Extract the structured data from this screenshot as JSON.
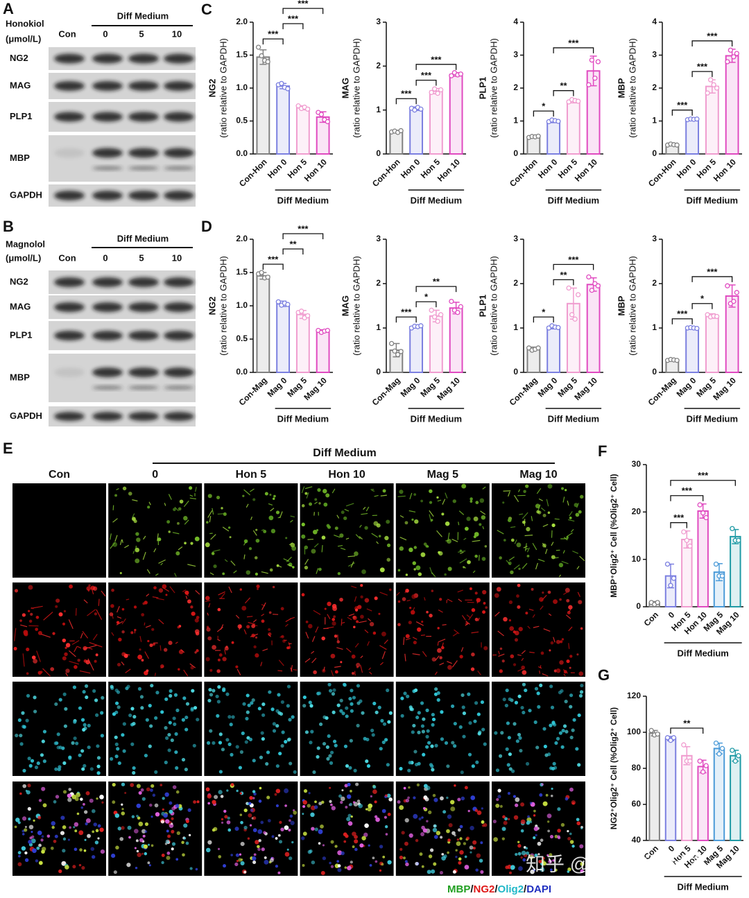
{
  "blots": [
    {
      "letter": "A",
      "treatment": "Honokiol",
      "unit": "(μmol/L)",
      "group": "Diff Medium",
      "lanes": [
        "Con",
        "0",
        "5",
        "10"
      ],
      "rows": [
        "NG2",
        "MAG",
        "PLP1",
        "MBP",
        "GAPDH"
      ]
    },
    {
      "letter": "B",
      "treatment": "Magnolol",
      "unit": "(μmol/L)",
      "group": "Diff Medium",
      "lanes": [
        "Con",
        "0",
        "5",
        "10"
      ],
      "rows": [
        "NG2",
        "MAG",
        "PLP1",
        "MBP",
        "GAPDH"
      ]
    }
  ],
  "micrographs": {
    "letter": "E",
    "group": "Diff Medium",
    "columns": [
      "Con",
      "0",
      "Hon 5",
      "Hon 10",
      "Mag 5",
      "Mag 10"
    ],
    "legend": {
      "separator": "/",
      "channels": [
        {
          "name": "MBP",
          "color": "#22a022"
        },
        {
          "name": "NG2",
          "color": "#e01818"
        },
        {
          "name": "Olig2",
          "color": "#20b8c8"
        },
        {
          "name": "DAPI",
          "color": "#2030c0"
        }
      ]
    }
  },
  "watermark": "知乎 @逻辑神经科学",
  "chart_data": [
    {
      "type": "bar",
      "panel": "C",
      "ylabel": "NG2",
      "ylabel_sub": "(ratio relative to GAPDH)",
      "group": "Diff Medium",
      "categories": [
        "Con-Hon",
        "Hon 0",
        "Hon 5",
        "Hon 10"
      ],
      "colors": [
        "#808080",
        "#7b7fe0",
        "#f09ccf",
        "#e04ac0"
      ],
      "values": [
        1.47,
        1.03,
        0.7,
        0.56
      ],
      "errors": [
        0.11,
        0.04,
        0.03,
        0.08
      ],
      "points": [
        [
          1.62,
          1.49,
          1.42,
          1.4
        ],
        [
          1.05,
          1.07,
          1.01,
          0.99
        ],
        [
          0.73,
          0.69,
          0.71,
          0.68
        ],
        [
          0.63,
          0.6,
          0.52,
          0.49
        ]
      ],
      "ylim": [
        0,
        2
      ],
      "yticks": [
        {
          "value": 0,
          "label": "0.0"
        },
        0.5,
        {
          "value": 1,
          "label": "1.0"
        },
        1.5,
        {
          "value": 2,
          "label": "2.0"
        }
      ],
      "annotations": [
        {
          "from": "Con-Hon",
          "to": "Hon 0",
          "label": "***"
        },
        {
          "from": "Hon 0",
          "to": "Hon 5",
          "label": "***"
        },
        {
          "from": "Hon 0",
          "to": "Hon 10",
          "label": "***"
        }
      ]
    },
    {
      "type": "bar",
      "ylabel": "MAG",
      "ylabel_sub": "(ratio relative to GAPDH)",
      "group": "Diff Medium",
      "categories": [
        "Con-Hon",
        "Hon 0",
        "Hon 5",
        "Hon 10"
      ],
      "colors": [
        "#808080",
        "#7b7fe0",
        "#f09ccf",
        "#e04ac0"
      ],
      "values": [
        0.51,
        1.03,
        1.43,
        1.81
      ],
      "errors": [
        0.03,
        0.04,
        0.06,
        0.04
      ],
      "points": [
        [
          0.5,
          0.52,
          0.49,
          0.53
        ],
        [
          1.04,
          1.0,
          1.06,
          1.02
        ],
        [
          1.4,
          1.48,
          1.38,
          1.46
        ],
        [
          1.78,
          1.85,
          1.8,
          1.82
        ]
      ],
      "ylim": [
        0,
        3
      ],
      "yticks": [
        0,
        1,
        2,
        3
      ],
      "annotations": [
        {
          "from": "Con-Hon",
          "to": "Hon 0",
          "label": "***"
        },
        {
          "from": "Hon 0",
          "to": "Hon 5",
          "label": "***"
        },
        {
          "from": "Hon 0",
          "to": "Hon 10",
          "label": "***"
        }
      ]
    },
    {
      "type": "bar",
      "ylabel": "PLP1",
      "ylabel_sub": "(ratio relative to GAPDH)",
      "group": "Diff Medium",
      "categories": [
        "Con-Hon",
        "Hon 0",
        "Hon 5",
        "Hon 10"
      ],
      "colors": [
        "#808080",
        "#7b7fe0",
        "#f09ccf",
        "#e04ac0"
      ],
      "values": [
        0.52,
        1.0,
        1.61,
        2.52
      ],
      "errors": [
        0.04,
        0.05,
        0.06,
        0.45
      ],
      "points": [
        [
          0.5,
          0.53,
          0.52,
          0.54
        ],
        [
          0.98,
          1.03,
          1.01,
          0.99
        ],
        [
          1.58,
          1.65,
          1.62,
          1.6
        ],
        [
          2.1,
          2.85,
          2.3,
          2.8
        ]
      ],
      "ylim": [
        0,
        4
      ],
      "yticks": [
        0,
        1,
        2,
        3,
        4
      ],
      "annotations": [
        {
          "from": "Con-Hon",
          "to": "Hon 0",
          "label": "*"
        },
        {
          "from": "Hon 0",
          "to": "Hon 5",
          "label": "**"
        },
        {
          "from": "Hon 0",
          "to": "Hon 10",
          "label": "***"
        }
      ]
    },
    {
      "type": "bar",
      "ylabel": "MBP",
      "ylabel_sub": "(ratio relative to GAPDH)",
      "group": "Diff Medium",
      "categories": [
        "Con-Hon",
        "Hon 0",
        "Hon 5",
        "Hon 10"
      ],
      "colors": [
        "#808080",
        "#7b7fe0",
        "#f09ccf",
        "#e04ac0"
      ],
      "values": [
        0.28,
        1.05,
        2.05,
        2.98
      ],
      "errors": [
        0.03,
        0.03,
        0.2,
        0.2
      ],
      "points": [
        [
          0.27,
          0.3,
          0.28,
          0.27
        ],
        [
          1.04,
          1.06,
          1.05,
          1.06
        ],
        [
          1.85,
          2.25,
          2.1,
          2.0
        ],
        [
          2.8,
          3.15,
          2.95,
          3.05
        ]
      ],
      "ylim": [
        0,
        4
      ],
      "yticks": [
        0,
        1,
        2,
        3,
        4
      ],
      "annotations": [
        {
          "from": "Con-Hon",
          "to": "Hon 0",
          "label": "***"
        },
        {
          "from": "Hon 0",
          "to": "Hon 5",
          "label": "***"
        },
        {
          "from": "Hon 0",
          "to": "Hon 10",
          "label": "***"
        }
      ]
    },
    {
      "type": "bar",
      "panel": "D",
      "ylabel": "NG2",
      "ylabel_sub": "(ratio relative to GAPDH)",
      "group": "Diff Medium",
      "categories": [
        "Con-Mag",
        "Mag 0",
        "Mag 5",
        "Mag 10"
      ],
      "colors": [
        "#808080",
        "#7b7fe0",
        "#f09ccf",
        "#e04ac0"
      ],
      "values": [
        1.45,
        1.03,
        0.87,
        0.62
      ],
      "errors": [
        0.05,
        0.04,
        0.06,
        0.02
      ],
      "points": [
        [
          1.48,
          1.5,
          1.42,
          1.43
        ],
        [
          1.06,
          1.01,
          1.04,
          1.02
        ],
        [
          0.9,
          0.92,
          0.82,
          0.85
        ],
        [
          0.63,
          0.6,
          0.62,
          0.63
        ]
      ],
      "ylim": [
        0,
        2
      ],
      "yticks": [
        {
          "value": 0,
          "label": "0.0"
        },
        0.5,
        {
          "value": 1,
          "label": "1.0"
        },
        1.5,
        {
          "value": 2,
          "label": "2.0"
        }
      ],
      "annotations": [
        {
          "from": "Con-Mag",
          "to": "Mag 0",
          "label": "***"
        },
        {
          "from": "Mag 0",
          "to": "Mag 5",
          "label": "**"
        },
        {
          "from": "Mag 0",
          "to": "Mag 10",
          "label": "***"
        }
      ]
    },
    {
      "type": "bar",
      "ylabel": "MAG",
      "ylabel_sub": "(ratio relative to GAPDH)",
      "group": "Diff Medium",
      "categories": [
        "Con-Mag",
        "Mag 0",
        "Mag 5",
        "Mag 10"
      ],
      "colors": [
        "#808080",
        "#7b7fe0",
        "#f09ccf",
        "#e04ac0"
      ],
      "values": [
        0.5,
        1.03,
        1.27,
        1.45
      ],
      "errors": [
        0.15,
        0.03,
        0.13,
        0.13
      ],
      "points": [
        [
          0.65,
          0.48,
          0.4,
          0.47
        ],
        [
          1.0,
          1.04,
          1.03,
          1.05
        ],
        [
          1.4,
          1.25,
          1.15,
          1.3
        ],
        [
          1.6,
          1.4,
          1.35,
          1.48
        ]
      ],
      "ylim": [
        0,
        3
      ],
      "yticks": [
        0,
        1,
        2,
        3
      ],
      "annotations": [
        {
          "from": "Con-Mag",
          "to": "Mag 0",
          "label": "***"
        },
        {
          "from": "Mag 0",
          "to": "Mag 5",
          "label": "*"
        },
        {
          "from": "Mag 0",
          "to": "Mag 10",
          "label": "**"
        }
      ]
    },
    {
      "type": "bar",
      "ylabel": "PLP1",
      "ylabel_sub": "(ratio relative to GAPDH)",
      "group": "Diff Medium",
      "categories": [
        "Con-Mag",
        "Mag 0",
        "Mag 5",
        "Mag 10"
      ],
      "colors": [
        "#808080",
        "#7b7fe0",
        "#f09ccf",
        "#e04ac0"
      ],
      "values": [
        0.53,
        1.02,
        1.55,
        1.98
      ],
      "errors": [
        0.04,
        0.04,
        0.35,
        0.15
      ],
      "points": [
        [
          0.55,
          0.5,
          0.52,
          0.55
        ],
        [
          1.0,
          1.05,
          1.02,
          1.01
        ],
        [
          1.9,
          1.3,
          1.2,
          1.75
        ],
        [
          2.15,
          1.85,
          2.0,
          1.95
        ]
      ],
      "ylim": [
        0,
        3
      ],
      "yticks": [
        0,
        1,
        2,
        3
      ],
      "annotations": [
        {
          "from": "Con-Mag",
          "to": "Mag 0",
          "label": "*"
        },
        {
          "from": "Mag 0",
          "to": "Mag 5",
          "label": "**"
        },
        {
          "from": "Mag 0",
          "to": "Mag 10",
          "label": "***"
        }
      ]
    },
    {
      "type": "bar",
      "ylabel": "MBP",
      "ylabel_sub": "(ratio relative to GAPDH)",
      "group": "Diff Medium",
      "categories": [
        "Con-Mag",
        "Mag 0",
        "Mag 5",
        "Mag 10"
      ],
      "colors": [
        "#808080",
        "#7b7fe0",
        "#f09ccf",
        "#e04ac0"
      ],
      "values": [
        0.28,
        1.0,
        1.27,
        1.72
      ],
      "errors": [
        0.02,
        0.02,
        0.05,
        0.25
      ],
      "points": [
        [
          0.27,
          0.29,
          0.28,
          0.27
        ],
        [
          1.0,
          1.01,
          1.0,
          0.99
        ],
        [
          1.3,
          1.25,
          1.27,
          1.26
        ],
        [
          1.95,
          1.55,
          1.6,
          1.8
        ]
      ],
      "ylim": [
        0,
        3
      ],
      "yticks": [
        0,
        1,
        2,
        3
      ],
      "annotations": [
        {
          "from": "Con-Mag",
          "to": "Mag 0",
          "label": "***"
        },
        {
          "from": "Mag 0",
          "to": "Mag 5",
          "label": "*"
        },
        {
          "from": "Mag 0",
          "to": "Mag 10",
          "label": "***"
        }
      ]
    },
    {
      "type": "bar",
      "panel": "F",
      "ylabel": "MBP⁺Olig2⁺ Cell (%Olig2⁺ Cell)",
      "group": "Diff Medium",
      "categories": [
        "Con",
        "0",
        "Hon 5",
        "Hon 10",
        "Mag 5",
        "Mag 10"
      ],
      "colors": [
        "#808080",
        "#7b7fe0",
        "#f09ccf",
        "#e04ac0",
        "#4a9ad8",
        "#1f9aa5"
      ],
      "values": [
        0.8,
        6.5,
        14.2,
        20.2,
        7.3,
        14.8
      ],
      "errors": [
        0.3,
        2.5,
        1.8,
        1.5,
        1.8,
        1.5
      ],
      "points": [
        [
          0.9,
          0.5,
          0.9
        ],
        [
          9.0,
          4.5,
          6.0
        ],
        [
          15.8,
          14.0,
          12.8
        ],
        [
          21.5,
          19.8,
          18.8
        ],
        [
          9.0,
          6.5,
          6.5
        ],
        [
          16.5,
          14.0,
          14.0
        ]
      ],
      "ylim": [
        0,
        30
      ],
      "yticks": [
        0,
        10,
        20,
        30
      ],
      "annotations": [
        {
          "from": "0",
          "to": "Hon 5",
          "label": "***"
        },
        {
          "from": "0",
          "to": "Hon 10",
          "label": "***"
        },
        {
          "from": "0",
          "to": "Mag 10",
          "label": "***"
        }
      ]
    },
    {
      "type": "bar",
      "panel": "G",
      "ylabel": "NG2⁺Olig2⁺ Cell (%Olig2⁺ Cell)",
      "group": "Diff Medium",
      "categories": [
        "Con",
        "0",
        "Hon 5",
        "Hon 10",
        "Mag 5",
        "Mag 10"
      ],
      "colors": [
        "#808080",
        "#7b7fe0",
        "#f09ccf",
        "#e04ac0",
        "#4a9ad8",
        "#1f9aa5"
      ],
      "values": [
        99.5,
        96.5,
        87,
        81,
        91,
        87
      ],
      "errors": [
        1.5,
        1.2,
        5,
        3.5,
        3,
        3
      ],
      "points": [
        [
          101,
          98.5,
          99
        ],
        [
          97,
          95.5,
          97
        ],
        [
          93,
          84,
          84
        ],
        [
          84,
          78,
          81.5
        ],
        [
          94,
          88,
          91
        ],
        [
          90,
          84,
          87
        ]
      ],
      "ylim": [
        40,
        120
      ],
      "yticks": [
        40,
        60,
        80,
        100,
        120
      ],
      "annotations": [
        {
          "from": "0",
          "to": "Hon 10",
          "label": "**"
        }
      ]
    }
  ]
}
